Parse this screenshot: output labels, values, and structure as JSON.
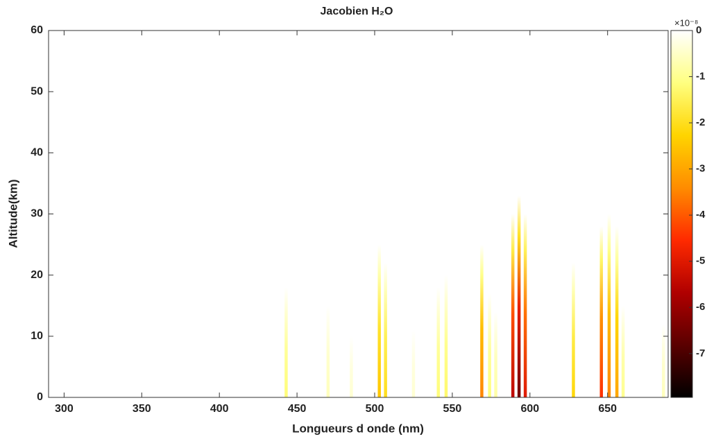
{
  "chart_data": {
    "type": "heatmap",
    "title": "Jacobien H₂O",
    "xlabel": "Longueurs d onde (nm)",
    "ylabel": "Altitude(km)",
    "xlim": [
      290,
      689
    ],
    "xticks": [
      300,
      350,
      400,
      450,
      500,
      550,
      600,
      650
    ],
    "ylim": [
      0,
      60
    ],
    "yticks": [
      0,
      10,
      20,
      30,
      40,
      50,
      60
    ],
    "x": [
      443,
      470,
      485,
      503,
      507,
      525,
      541,
      546,
      569,
      574,
      578,
      589,
      593,
      597,
      628,
      646,
      651,
      656,
      660,
      686
    ],
    "top": [
      18,
      15,
      10,
      25,
      22,
      11,
      18,
      20,
      25,
      17,
      14,
      30,
      33,
      30,
      22,
      28,
      30,
      28,
      15,
      12
    ],
    "values": [
      -1.2e-08,
      -6e-09,
      -4e-09,
      -2.5e-08,
      -2e-08,
      -4e-09,
      -1.2e-08,
      -1.3e-08,
      -3.5e-08,
      -1.2e-08,
      -8e-09,
      -5.5e-08,
      -6.5e-08,
      -5e-08,
      -2.2e-08,
      -4.5e-08,
      -3.5e-08,
      -3e-08,
      -1e-08,
      -6e-09
    ],
    "colormap": [
      "#000000",
      "#5a0000",
      "#b00000",
      "#ff2a00",
      "#ff8c00",
      "#ffd400",
      "#ffff80",
      "#ffffff"
    ],
    "clim": [
      -7.95e-08,
      0
    ],
    "cticks": [
      {
        "value": 0,
        "label": "0"
      },
      {
        "value": -1e-08,
        "label": "-1"
      },
      {
        "value": -2e-08,
        "label": "-2"
      },
      {
        "value": -3e-08,
        "label": "-3"
      },
      {
        "value": -4e-08,
        "label": "-4"
      },
      {
        "value": -5e-08,
        "label": "-5"
      },
      {
        "value": -6e-08,
        "label": "-6"
      },
      {
        "value": -7e-08,
        "label": "-7"
      }
    ],
    "cexponent": "×10⁻⁸"
  }
}
